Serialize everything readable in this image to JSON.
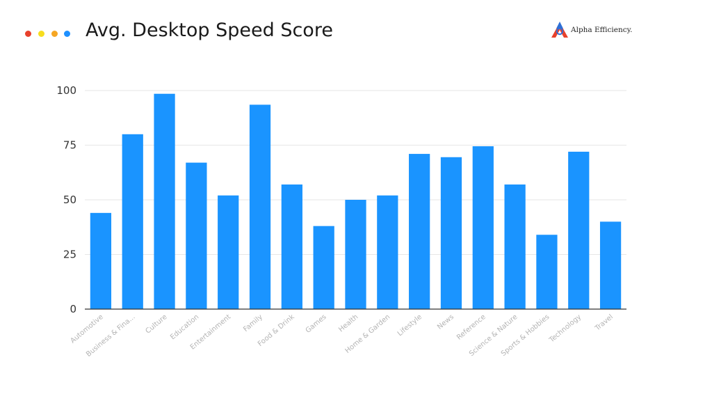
{
  "header": {
    "title": "Avg. Desktop Speed Score",
    "dot_colors": [
      "#e8412c",
      "#f7dd1e",
      "#f5a623",
      "#1e90ff"
    ]
  },
  "brand": {
    "name": "Alpha Efficiency.",
    "logo_icon": "alpha-triangle-logo-icon",
    "colors": [
      "#2f6fd6",
      "#e8412c"
    ]
  },
  "chart_data": {
    "type": "bar",
    "categories": [
      "Automotive",
      "Business & Fina...",
      "Culture",
      "Education",
      "Entertainment",
      "Family",
      "Food & Drink",
      "Games",
      "Health",
      "Home & Garden",
      "Lifestyle",
      "News",
      "Reference",
      "Science & Nature",
      "Sports & Hobbies",
      "Technology",
      "Travel"
    ],
    "values": [
      44,
      80,
      98.5,
      67,
      52,
      93.5,
      57,
      38,
      50,
      52,
      71,
      69.5,
      74.5,
      57,
      34,
      72,
      40
    ],
    "title": "Avg. Desktop Speed Score",
    "xlabel": "",
    "ylabel": "",
    "ylim": [
      0,
      100
    ],
    "yticks": [
      "0",
      "25",
      "50",
      "75",
      "100"
    ],
    "grid": true,
    "bar_color": "#1a94ff",
    "gridline_color": "#e6e6e6",
    "axis_color": "#333333"
  }
}
